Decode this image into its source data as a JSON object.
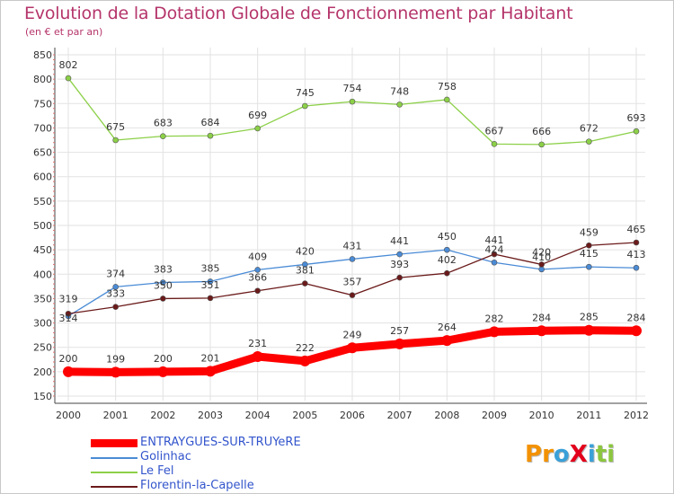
{
  "title": "Evolution de la Dotation Globale de Fonctionnement par Habitant",
  "subtitle": "(en € et par an)",
  "logo": {
    "text": "ProXiti",
    "letters": [
      {
        "ch": "P",
        "color": "#f39200"
      },
      {
        "ch": "r",
        "color": "#f39200"
      },
      {
        "ch": "o",
        "color": "#3aa0d8"
      },
      {
        "ch": "X",
        "color": "#e3001b"
      },
      {
        "ch": "i",
        "color": "#3aa0d8"
      },
      {
        "ch": "t",
        "color": "#8cc63f"
      },
      {
        "ch": "i",
        "color": "#8cc63f"
      }
    ]
  },
  "chart_data": {
    "type": "line",
    "x": [
      "2000",
      "2001",
      "2002",
      "2003",
      "2004",
      "2005",
      "2006",
      "2007",
      "2008",
      "2009",
      "2010",
      "2011",
      "2012"
    ],
    "ylim": [
      150,
      850
    ],
    "yticks": [
      150,
      200,
      250,
      300,
      350,
      400,
      450,
      500,
      550,
      600,
      650,
      700,
      750,
      800,
      850
    ],
    "grid": true,
    "legend": "bottom-left",
    "series": [
      {
        "name": "ENTRAYGUES-SUR-TRUYeRE",
        "color": "#ff0000",
        "values": [
          200,
          199,
          200,
          201,
          231,
          222,
          249,
          257,
          264,
          282,
          284,
          285,
          284
        ],
        "labels": [
          "200",
          "199",
          "200",
          "201",
          "231",
          "222",
          "249",
          "257",
          "264",
          "282",
          "284",
          "285",
          "284"
        ]
      },
      {
        "name": "Golinhac",
        "color": "#4a8bd6",
        "values": [
          314,
          374,
          383,
          385,
          409,
          420,
          431,
          441,
          450,
          424,
          410,
          415,
          413
        ],
        "labels": [
          "314",
          "374",
          "383",
          "385",
          "409",
          "420",
          "431",
          "441",
          "450",
          "424",
          "410",
          "415",
          "413"
        ]
      },
      {
        "name": "Le Fel",
        "color": "#8cd048",
        "values": [
          802,
          675,
          683,
          684,
          699,
          745,
          754,
          748,
          758,
          667,
          666,
          672,
          693
        ],
        "labels": [
          "802",
          "675",
          "683",
          "684",
          "699",
          "745",
          "754",
          "748",
          "758",
          "667",
          "666",
          "672",
          "693"
        ]
      },
      {
        "name": "Florentin-la-Capelle",
        "color": "#6b1a1a",
        "values": [
          319,
          333,
          350,
          351,
          366,
          381,
          357,
          393,
          402,
          441,
          420,
          459,
          465
        ],
        "labels": [
          "319",
          "333",
          "350",
          "351",
          "366",
          "381",
          "357",
          "393",
          "402",
          "441",
          "420",
          "459",
          "465"
        ]
      }
    ]
  }
}
